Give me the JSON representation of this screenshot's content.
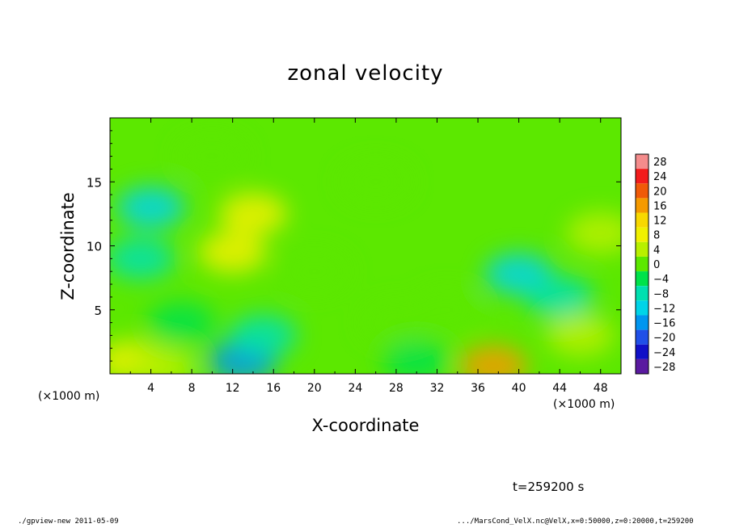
{
  "chart_data": {
    "type": "heatmap",
    "title": "zonal velocity",
    "xlabel": "X-coordinate",
    "ylabel": "Z-coordinate",
    "x_unit": "(×1000 m)",
    "y_unit": "(×1000 m)",
    "xlim": [
      0,
      50
    ],
    "ylim": [
      0,
      20
    ],
    "x_ticks": [
      4,
      8,
      12,
      16,
      20,
      24,
      28,
      32,
      36,
      40,
      44,
      48
    ],
    "y_ticks": [
      5,
      10,
      15
    ],
    "colorbar": {
      "levels": [
        28,
        24,
        20,
        16,
        12,
        8,
        4,
        0,
        -4,
        -8,
        -12,
        -16,
        -20,
        -24,
        -28
      ],
      "colors": [
        "#f48c8c",
        "#f21c1c",
        "#f05a08",
        "#f59a00",
        "#f8d800",
        "#f0f000",
        "#b8f000",
        "#5ce800",
        "#00e24a",
        "#00e0b0",
        "#00d4e8",
        "#0096f0",
        "#2050e8",
        "#1010c8",
        "#5a1aa0"
      ],
      "min": -30,
      "max": 30
    },
    "field": [
      {
        "x": 25,
        "z": 10,
        "u": 2
      },
      {
        "x": 4,
        "z": 13,
        "u": -9
      },
      {
        "x": 3,
        "z": 9,
        "u": -5
      },
      {
        "x": 14,
        "z": 12.5,
        "u": 10
      },
      {
        "x": 12,
        "z": 9.5,
        "u": 9
      },
      {
        "x": 7,
        "z": 4,
        "u": -1
      },
      {
        "x": 13,
        "z": 1,
        "u": -13
      },
      {
        "x": 15,
        "z": 3,
        "u": -6
      },
      {
        "x": 2,
        "z": 1,
        "u": 9
      },
      {
        "x": 5,
        "z": 0.5,
        "u": 4
      },
      {
        "x": 37.5,
        "z": 0.6,
        "u": 18
      },
      {
        "x": 40,
        "z": 7.8,
        "u": -9
      },
      {
        "x": 44,
        "z": 6,
        "u": -6
      },
      {
        "x": 33,
        "z": 5,
        "u": 0
      },
      {
        "x": 20,
        "z": 8,
        "u": 1
      },
      {
        "x": 28,
        "z": 4,
        "u": 3
      },
      {
        "x": 46,
        "z": 3,
        "u": 5
      },
      {
        "x": 48,
        "z": 11,
        "u": 4
      },
      {
        "x": 26,
        "z": 15,
        "u": 2
      },
      {
        "x": 10,
        "z": 17,
        "u": 3
      },
      {
        "x": 30,
        "z": 1,
        "u": -3
      }
    ]
  },
  "annotations": {
    "time": "t=259200 s",
    "footer_left": "./gpview-new  2011-05-09",
    "footer_right": ".../MarsCond_VelX.nc@VelX,x=0:50000,z=0:20000,t=259200"
  }
}
